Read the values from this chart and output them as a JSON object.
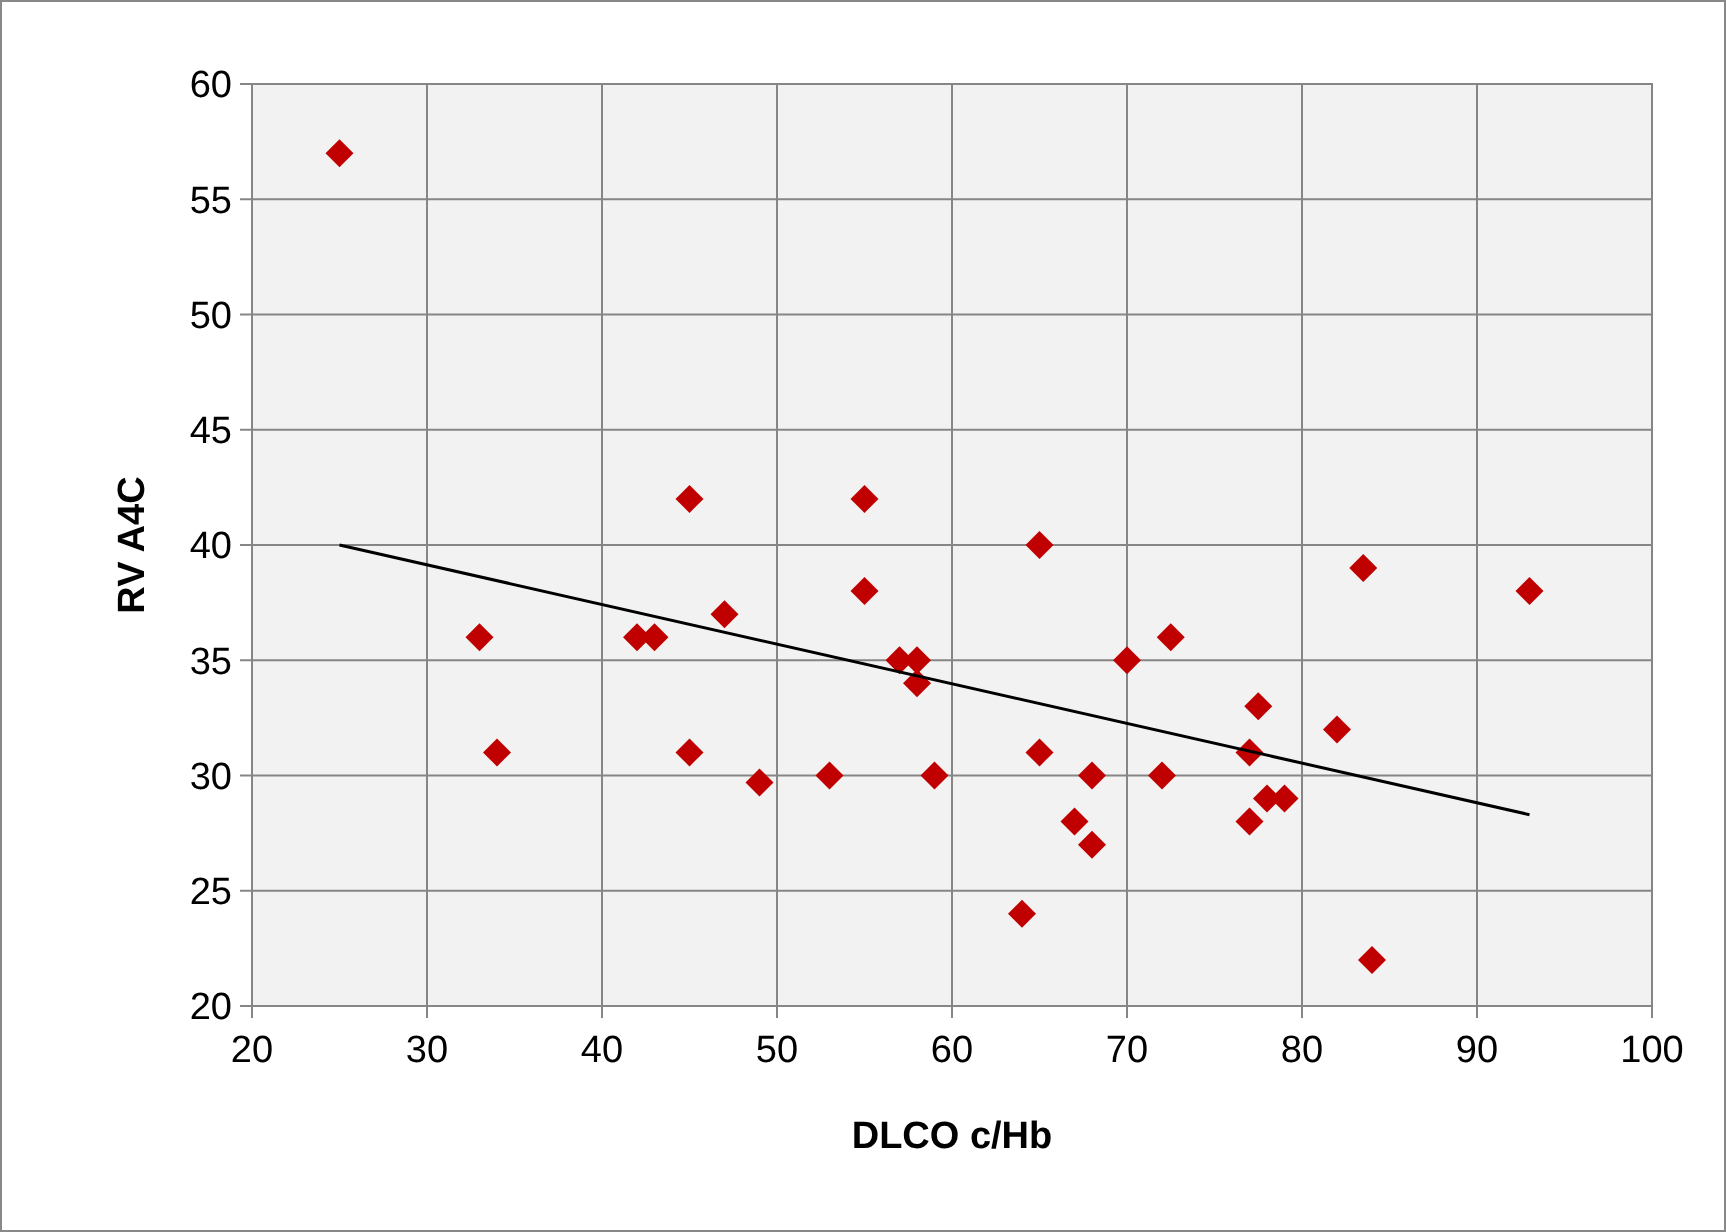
{
  "chart_data": {
    "type": "scatter",
    "xlabel": "DLCO c/Hb",
    "ylabel": "RV A4C",
    "xlim": [
      20,
      100
    ],
    "ylim": [
      20,
      60
    ],
    "xticks": [
      20,
      30,
      40,
      50,
      60,
      70,
      80,
      90,
      100
    ],
    "yticks": [
      20,
      25,
      30,
      35,
      40,
      45,
      50,
      55,
      60
    ],
    "grid": true,
    "series": [
      {
        "color": "#c00000",
        "marker": "diamond",
        "x": [
          25,
          33,
          34,
          42,
          43,
          45,
          45,
          47,
          49,
          53,
          55,
          55,
          57,
          58,
          58,
          59,
          64,
          65,
          65,
          67,
          68,
          68,
          70,
          72,
          72.5,
          77,
          77,
          77.5,
          78,
          79,
          82,
          83.5,
          84,
          93
        ],
        "values": [
          57,
          36,
          31,
          36,
          36,
          42,
          31,
          37,
          29.7,
          30,
          42,
          38,
          35,
          35,
          34,
          30,
          24,
          40,
          31,
          28,
          30,
          27,
          35,
          30,
          36,
          31,
          28,
          33,
          29,
          29,
          32,
          39,
          22,
          38
        ]
      },
      {
        "type": "line",
        "color": "#000000",
        "marker": "none",
        "x": [
          25,
          93
        ],
        "values": [
          40,
          28.3
        ]
      }
    ]
  }
}
